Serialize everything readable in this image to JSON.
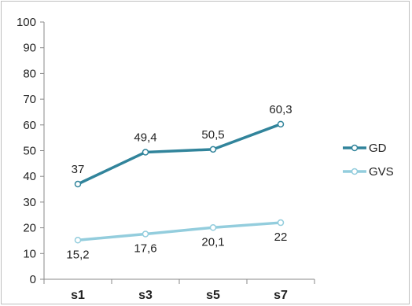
{
  "chart_data": {
    "type": "line",
    "categories": [
      "s1",
      "s3",
      "s5",
      "s7"
    ],
    "ylim": [
      0,
      100
    ],
    "yticks": [
      0,
      10,
      20,
      30,
      40,
      50,
      60,
      70,
      80,
      90,
      100
    ],
    "grid": false,
    "legend_position": "right",
    "series": [
      {
        "name": "GD",
        "values": [
          37,
          49.4,
          50.5,
          60.3
        ],
        "labels": [
          "37",
          "49,4",
          "50,5",
          "60,3"
        ],
        "color": "#31849b"
      },
      {
        "name": "GVS",
        "values": [
          15.2,
          17.6,
          20.1,
          22
        ],
        "labels": [
          "15,2",
          "17,6",
          "20,1",
          "22"
        ],
        "color": "#93cddd"
      }
    ]
  }
}
